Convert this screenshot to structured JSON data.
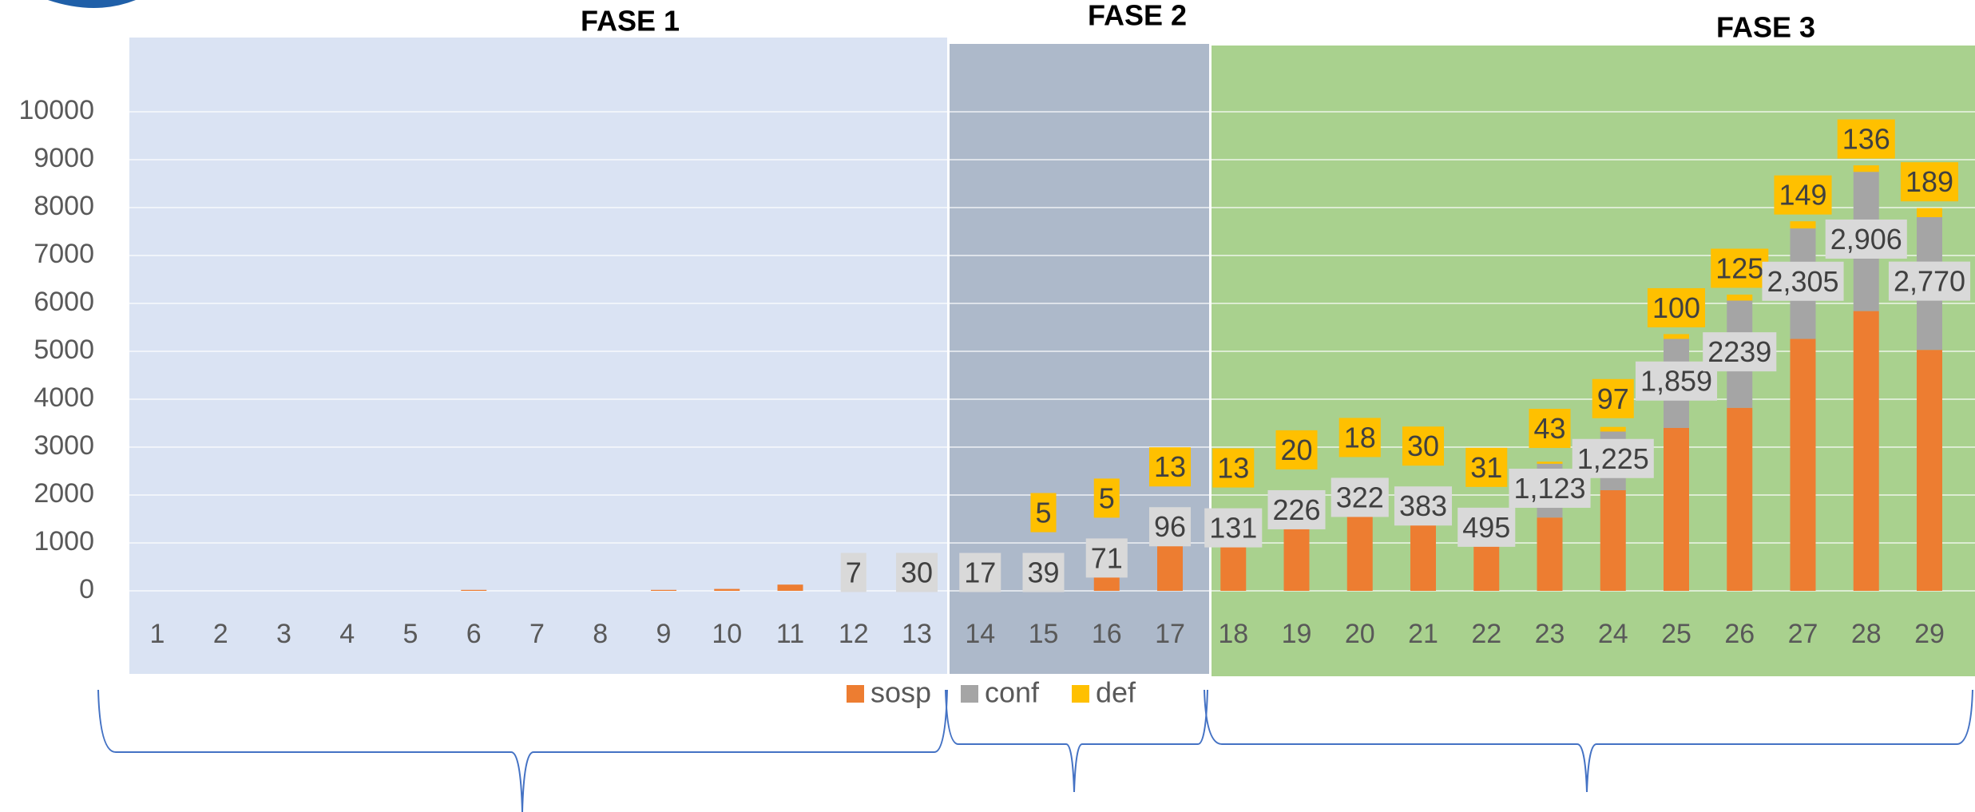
{
  "chart_data": {
    "type": "stacked_bar",
    "phases": [
      "FASE 1",
      "FASE 2",
      "FASE 3"
    ],
    "categories": [
      "1",
      "2",
      "3",
      "4",
      "5",
      "6",
      "7",
      "8",
      "9",
      "10",
      "11",
      "12",
      "13",
      "14",
      "15",
      "16",
      "17",
      "18",
      "19",
      "20",
      "21",
      "22",
      "23",
      "24",
      "25",
      "26",
      "27",
      "28",
      "29"
    ],
    "series": [
      {
        "name": "sosp",
        "color": "#ed7d31",
        "values": [
          0,
          0,
          0,
          0,
          0,
          20,
          0,
          0,
          20,
          40,
          130,
          0,
          200,
          110,
          100,
          600,
          1240,
          1200,
          1530,
          1740,
          1530,
          1030,
          1530,
          2100,
          3400,
          3820,
          5260,
          5840,
          5030
        ]
      },
      {
        "name": "conf",
        "color": "#a5a5a5",
        "values": [
          null,
          null,
          null,
          null,
          null,
          null,
          null,
          null,
          null,
          null,
          null,
          7,
          30,
          17,
          39,
          71,
          96,
          131,
          226,
          322,
          383,
          495,
          1123,
          1225,
          1859,
          2239,
          2305,
          2906,
          2770
        ],
        "value_labels": [
          null,
          null,
          null,
          null,
          null,
          null,
          null,
          null,
          null,
          null,
          null,
          "7",
          "30",
          "17",
          "39",
          "71",
          "96",
          "131",
          "226",
          "322",
          "383",
          "495",
          "1,123",
          "1,225",
          "1,859",
          "2239",
          "2,305",
          "2,906",
          "2,770"
        ]
      },
      {
        "name": "def",
        "color": "#ffc000",
        "values": [
          null,
          null,
          null,
          null,
          null,
          null,
          null,
          null,
          null,
          null,
          null,
          null,
          null,
          null,
          5,
          5,
          13,
          13,
          20,
          18,
          30,
          31,
          43,
          97,
          100,
          125,
          149,
          136,
          189
        ]
      }
    ],
    "ylim": [
      0,
      10000
    ],
    "yticks": [
      0,
      1000,
      2000,
      3000,
      4000,
      5000,
      6000,
      7000,
      8000,
      9000,
      10000
    ],
    "grid": true
  }
}
